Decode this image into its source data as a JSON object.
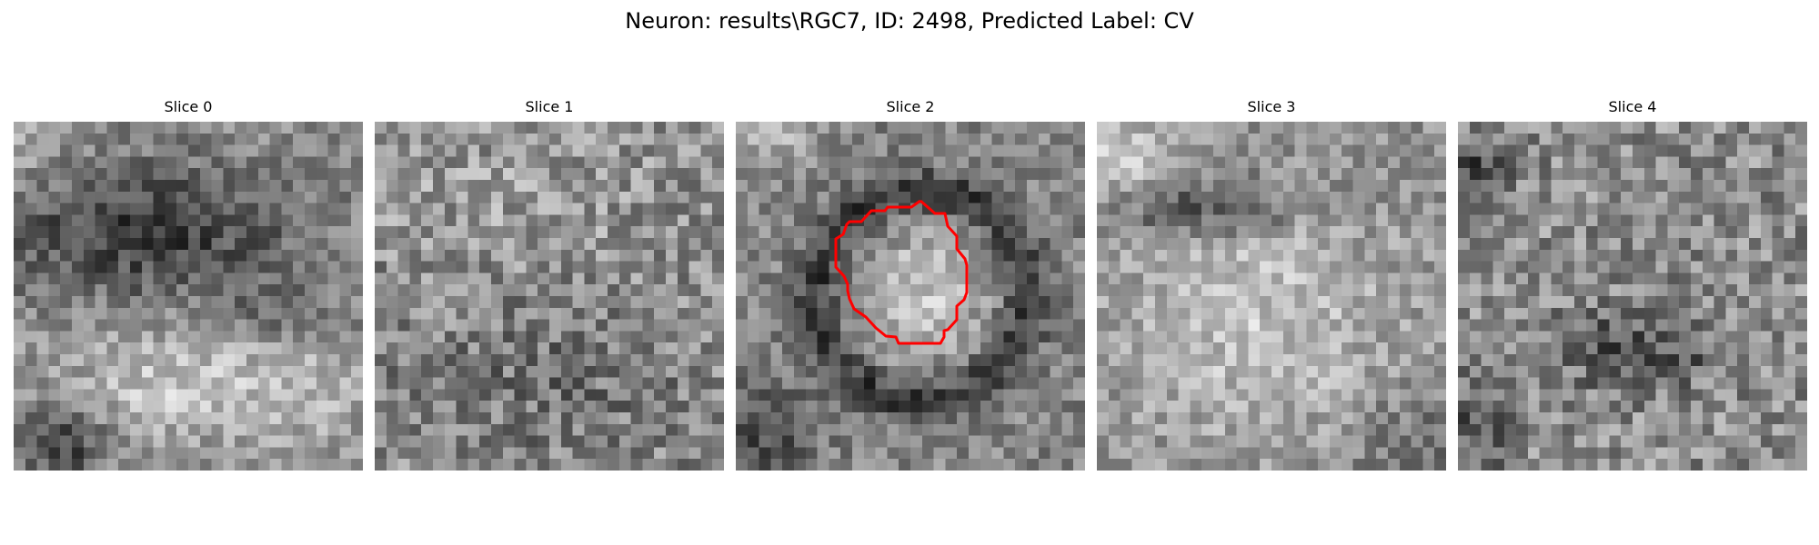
{
  "figure": {
    "title": "Neuron: results\\RGC7, ID: 2498, Predicted Label: CV"
  },
  "panels": [
    {
      "title": "Slice 0",
      "pattern": "dark-band-top-bright-bottom",
      "contour": false
    },
    {
      "title": "Slice 1",
      "pattern": "noisy-uniform",
      "contour": false
    },
    {
      "title": "Slice 2",
      "pattern": "bright-center-dark-ring",
      "contour": true
    },
    {
      "title": "Slice 3",
      "pattern": "dark-top-corner-bright-center",
      "contour": false
    },
    {
      "title": "Slice 4",
      "pattern": "noisy-dark-spots",
      "contour": false
    }
  ],
  "style": {
    "contour_color": "#ff0000",
    "colormap": "gray"
  }
}
